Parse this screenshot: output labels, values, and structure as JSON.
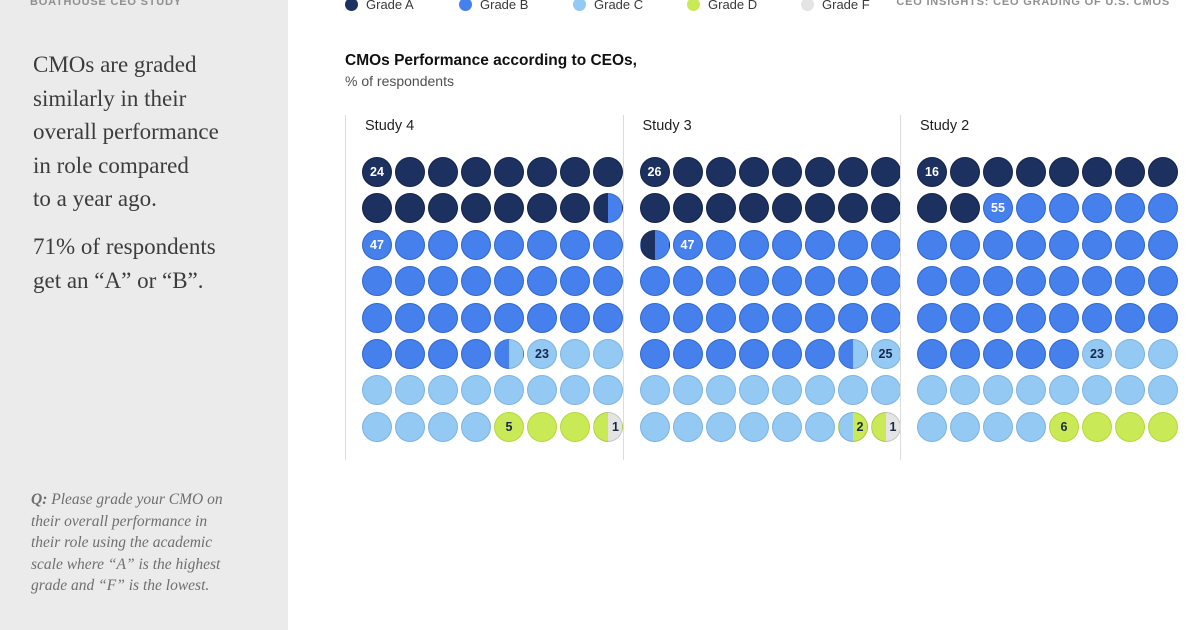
{
  "header": {
    "left": "BOATHOUSE CEO STUDY",
    "right": "CEO INSIGHTS: CEO GRADING OF U.S. CMOs"
  },
  "sidebar": {
    "headline": "CMOs are graded\nsimilarly in their\noverall performance\nin role compared\nto a year ago.",
    "stat_line": "71% of respondents\nget an “A” or “B”.",
    "question_prefix": "Q:",
    "question_text": " Please grade your CMO on\ntheir overall performance in\ntheir role using the academic\nscale where “A” is the highest\ngrade and “F” is the lowest."
  },
  "chart": {
    "title": "CMOs Performance according to CEOs,",
    "subtitle": "% of respondents"
  },
  "chart_data": {
    "type": "waffle",
    "title": "CMOs Performance according to CEOs,",
    "subtitle": "% of respondents",
    "grid": {
      "rows": 8,
      "cols": 8,
      "total_cells": 64,
      "percent_per_cell": 1.5625
    },
    "legend_position": "top",
    "legend": [
      {
        "key": "A",
        "label": "Grade A",
        "color": "#1d3160",
        "border": "#14224a",
        "text": "#ffffff"
      },
      {
        "key": "B",
        "label": "Grade B",
        "color": "#4580ec",
        "border": "#3066cd",
        "text": "#ffffff"
      },
      {
        "key": "C",
        "label": "Grade C",
        "color": "#93c9f3",
        "border": "#7db4e0",
        "text": "#16284e"
      },
      {
        "key": "D",
        "label": "Grade D",
        "color": "#c9e956",
        "border": "#b5d83c",
        "text": "#16284e"
      },
      {
        "key": "F",
        "label": "Grade F",
        "color": "#e4e4e4",
        "border": "#d2d2d2",
        "text": "#16284e"
      }
    ],
    "studies": [
      {
        "name": "Study 4",
        "values": {
          "Grade A": 24,
          "Grade B": 47,
          "Grade C": 23,
          "Grade D": 5,
          "Grade F": 1
        },
        "rows": [
          [
            "A:24",
            "A",
            "A",
            "A",
            "A",
            "A",
            "A",
            "A"
          ],
          [
            "A",
            "A",
            "A",
            "A",
            "A",
            "A",
            "A",
            "A|B"
          ],
          [
            "B:47",
            "B",
            "B",
            "B",
            "B",
            "B",
            "B",
            "B"
          ],
          [
            "B",
            "B",
            "B",
            "B",
            "B",
            "B",
            "B",
            "B"
          ],
          [
            "B",
            "B",
            "B",
            "B",
            "B",
            "B",
            "B",
            "B"
          ],
          [
            "B",
            "B",
            "B",
            "B",
            "B|C",
            "C:23",
            "C",
            "C"
          ],
          [
            "C",
            "C",
            "C",
            "C",
            "C",
            "C",
            "C",
            "C"
          ],
          [
            "C",
            "C",
            "C",
            "C",
            "D:5",
            "D",
            "D",
            "D|F:1"
          ]
        ]
      },
      {
        "name": "Study 3",
        "values": {
          "Grade A": 26,
          "Grade B": 47,
          "Grade C": 25,
          "Grade D": 2,
          "Grade F": 1
        },
        "rows": [
          [
            "A:26",
            "A",
            "A",
            "A",
            "A",
            "A",
            "A",
            "A"
          ],
          [
            "A",
            "A",
            "A",
            "A",
            "A",
            "A",
            "A",
            "A"
          ],
          [
            "A|B",
            "B:47",
            "B",
            "B",
            "B",
            "B",
            "B",
            "B"
          ],
          [
            "B",
            "B",
            "B",
            "B",
            "B",
            "B",
            "B",
            "B"
          ],
          [
            "B",
            "B",
            "B",
            "B",
            "B",
            "B",
            "B",
            "B"
          ],
          [
            "B",
            "B",
            "B",
            "B",
            "B",
            "B",
            "B|C",
            "C:25"
          ],
          [
            "C",
            "C",
            "C",
            "C",
            "C",
            "C",
            "C",
            "C"
          ],
          [
            "C",
            "C",
            "C",
            "C",
            "C",
            "C",
            "C|D:2",
            "D|F:1"
          ]
        ]
      },
      {
        "name": "Study 2",
        "values": {
          "Grade A": 16,
          "Grade B": 55,
          "Grade C": 23,
          "Grade D": 6,
          "Grade F": 0
        },
        "rows": [
          [
            "A:16",
            "A",
            "A",
            "A",
            "A",
            "A",
            "A",
            "A"
          ],
          [
            "A",
            "A",
            "B:55",
            "B",
            "B",
            "B",
            "B",
            "B"
          ],
          [
            "B",
            "B",
            "B",
            "B",
            "B",
            "B",
            "B",
            "B"
          ],
          [
            "B",
            "B",
            "B",
            "B",
            "B",
            "B",
            "B",
            "B"
          ],
          [
            "B",
            "B",
            "B",
            "B",
            "B",
            "B",
            "B",
            "B"
          ],
          [
            "B",
            "B",
            "B",
            "B",
            "B",
            "C:23",
            "C",
            "C"
          ],
          [
            "C",
            "C",
            "C",
            "C",
            "C",
            "C",
            "C",
            "C"
          ],
          [
            "C",
            "C",
            "C",
            "C",
            "D:6",
            "D",
            "D",
            "D"
          ]
        ]
      }
    ]
  }
}
